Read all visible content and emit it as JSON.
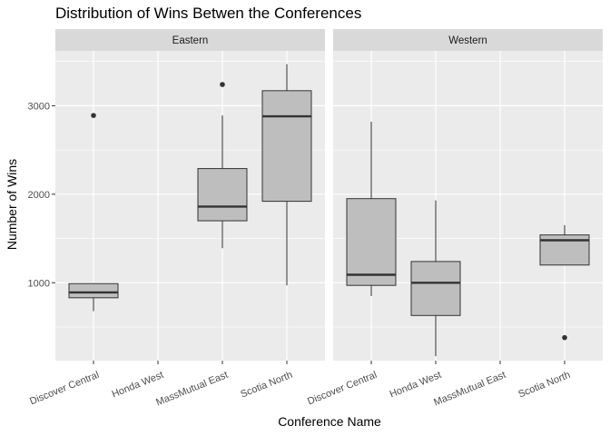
{
  "chart_data": {
    "type": "boxplot",
    "title": "Distribution of Wins Betwen the Conferences",
    "xlabel": "Conference Name",
    "ylabel": "Number of Wins",
    "ylim": [
      120,
      3620
    ],
    "yticks": [
      1000,
      2000,
      3000
    ],
    "yticks_label": [
      "1000",
      "2000",
      "3000"
    ],
    "categories": [
      "Discover Central",
      "Honda West",
      "MassMutual East",
      "Scotia North"
    ],
    "colors": {
      "box_fill": "#bebebe",
      "box_stroke": "#333333",
      "panel_bg": "#ebebeb",
      "strip_bg": "#d9d9d9",
      "grid": "#ffffff"
    },
    "facets": [
      {
        "name": "Eastern",
        "boxes": [
          {
            "category": "Discover Central",
            "min": 680,
            "q1": 830,
            "median": 890,
            "q3": 990,
            "max": 990,
            "outliers": [
              2890
            ]
          },
          {
            "category": "Honda West",
            "empty": true
          },
          {
            "category": "MassMutual East",
            "min": 1390,
            "q1": 1700,
            "median": 1860,
            "q3": 2290,
            "max": 2890,
            "outliers": [
              3240
            ]
          },
          {
            "category": "Scotia North",
            "min": 970,
            "q1": 1920,
            "median": 2880,
            "q3": 3170,
            "max": 3470,
            "outliers": []
          }
        ]
      },
      {
        "name": "Western",
        "boxes": [
          {
            "category": "Discover Central",
            "min": 850,
            "q1": 970,
            "median": 1090,
            "q3": 1950,
            "max": 2820,
            "outliers": []
          },
          {
            "category": "Honda West",
            "min": 170,
            "q1": 630,
            "median": 1000,
            "q3": 1240,
            "max": 1930,
            "outliers": []
          },
          {
            "category": "MassMutual East",
            "empty": true
          },
          {
            "category": "Scotia North",
            "min": 1200,
            "q1": 1200,
            "median": 1480,
            "q3": 1540,
            "max": 1650,
            "outliers": [
              380
            ]
          }
        ]
      }
    ]
  }
}
